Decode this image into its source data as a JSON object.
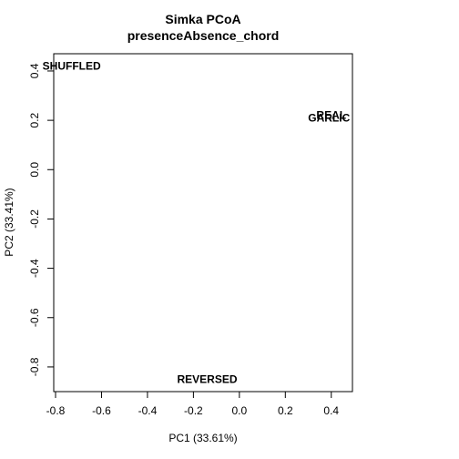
{
  "chart_data": {
    "type": "scatter",
    "title": "Simka PCoA",
    "subtitle": "presenceAbsence_chord",
    "xlabel": "PC1 (33.61%)",
    "ylabel": "PC2 (33.41%)",
    "xlim": [
      -0.8,
      0.5
    ],
    "ylim": [
      -0.9,
      0.47
    ],
    "xticks": [
      "-0.8",
      "-0.6",
      "-0.4",
      "-0.2",
      "0.0",
      "0.2",
      "0.4"
    ],
    "yticks": [
      "-0.8",
      "-0.6",
      "-0.4",
      "-0.2",
      "0.0",
      "0.2",
      "0.4"
    ],
    "points": [
      {
        "label": "SHUFFLED",
        "x": -0.73,
        "y": 0.42
      },
      {
        "label": "REAL",
        "x": 0.4,
        "y": 0.22
      },
      {
        "label": "GARLIC",
        "x": 0.39,
        "y": 0.21
      },
      {
        "label": "REVERSED",
        "x": -0.14,
        "y": -0.85
      }
    ],
    "grid": false,
    "legend": "none"
  }
}
